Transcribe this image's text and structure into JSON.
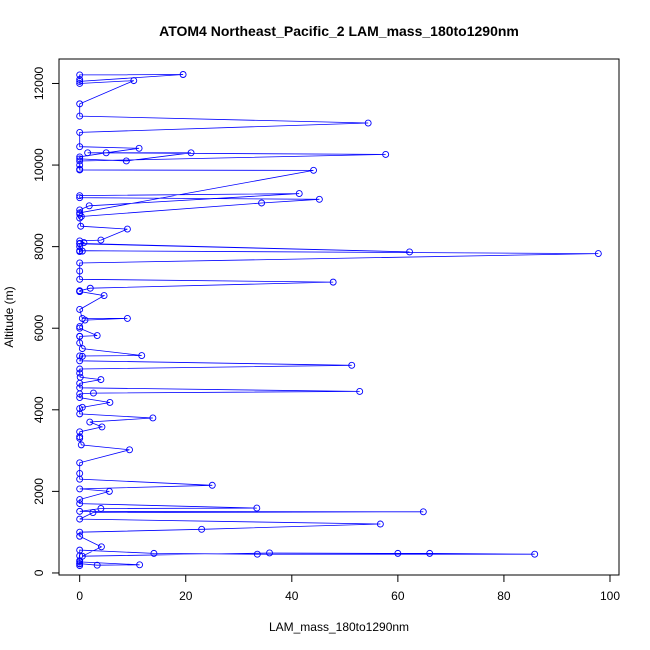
{
  "chart_data": {
    "type": "line",
    "title": "ATOM4 Northeast_Pacific_2 LAM_mass_180to1290nm",
    "xlabel": "LAM_mass_180to1290nm",
    "ylabel": "Altitude (m)",
    "xlim": [
      -3.9,
      101.7
    ],
    "ylim": [
      -50,
      12600
    ],
    "xticks": [
      0,
      20,
      40,
      60,
      80,
      100
    ],
    "yticks": [
      0,
      2000,
      4000,
      6000,
      8000,
      10000,
      12000
    ],
    "grid": false,
    "series_color": "#0000ff",
    "markers": "open-circle",
    "series": [
      {
        "x": [
          0,
          0,
          0,
          11.3,
          3.3,
          0,
          0,
          0,
          0,
          14,
          33.5,
          85.8,
          66,
          60,
          35.8,
          0.5,
          4.1,
          0,
          0,
          23,
          56.7,
          0,
          2.5,
          64.8,
          0,
          4,
          33.4,
          0,
          0,
          5.6,
          0,
          25,
          0,
          0,
          0,
          9.4,
          0.3,
          0,
          0,
          0,
          4.2,
          1.9,
          13.8,
          0,
          0,
          0.5,
          5.7,
          0,
          0,
          2.6,
          52.8,
          0,
          0,
          4,
          0.1,
          0,
          0,
          51.3,
          0,
          0.5,
          0,
          11.7,
          0.5,
          0,
          0,
          0,
          3.3,
          0,
          0,
          1,
          9,
          0.5,
          0,
          4.6,
          0,
          0,
          0,
          2,
          47.8,
          0,
          0,
          0,
          97.8,
          0,
          0,
          0.5,
          0,
          0,
          62.2,
          0,
          0.8,
          0,
          4,
          9,
          0.2,
          0,
          0.3,
          34.3,
          45.2,
          0,
          0,
          41.4,
          1.8,
          0,
          0,
          0,
          44.1,
          0,
          0,
          0,
          0,
          57.7,
          1.5,
          21,
          8.8,
          0,
          0,
          5,
          11.2,
          0,
          0,
          54.4,
          0,
          0,
          10.2,
          0,
          0,
          19.5,
          0,
          0
        ],
        "y": [
          180,
          220,
          270,
          200,
          190,
          230,
          300,
          420,
          560,
          480,
          460,
          460,
          480,
          480,
          490,
          410,
          640,
          900,
          1000,
          1070,
          1200,
          1320,
          1480,
          1500,
          1510,
          1580,
          1590,
          1700,
          1800,
          2000,
          2060,
          2150,
          2300,
          2440,
          2700,
          3020,
          3140,
          3300,
          3340,
          3460,
          3580,
          3700,
          3800,
          3900,
          4030,
          4060,
          4180,
          4300,
          4390,
          4410,
          4450,
          4540,
          4650,
          4740,
          4800,
          4900,
          5000,
          5090,
          5200,
          5310,
          5320,
          5330,
          5500,
          5640,
          5800,
          5800,
          5820,
          6000,
          6040,
          6200,
          6240,
          6240,
          6460,
          6800,
          6900,
          6900,
          6920,
          6980,
          7130,
          7200,
          7400,
          7600,
          7830,
          7900,
          7880,
          7890,
          8000,
          8080,
          7870,
          8070,
          8100,
          8140,
          8160,
          8430,
          8500,
          8700,
          8740,
          9070,
          9160,
          9200,
          9250,
          9300,
          9000,
          8900,
          8800,
          8830,
          9870,
          9880,
          9900,
          10000,
          10100,
          10260,
          10300,
          10300,
          10100,
          10150,
          10200,
          10300,
          10410,
          10450,
          10800,
          11030,
          11200,
          11500,
          12070,
          12000,
          12050,
          12220,
          12210,
          12100
        ]
      }
    ]
  }
}
